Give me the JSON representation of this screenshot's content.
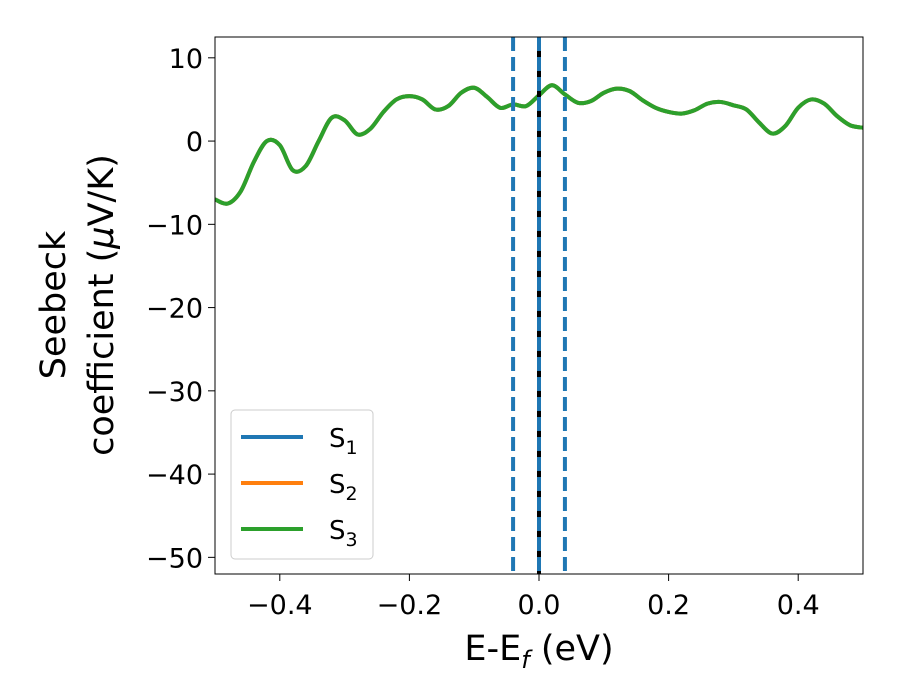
{
  "chart_data": {
    "type": "line",
    "xlabel": {
      "main": "E-E",
      "sub": "f",
      "tail": " (eV)"
    },
    "ylabel": {
      "line1": "Seebeck",
      "line2_a": "coefficient  (",
      "line2_mu": "μ",
      "line2_b": "V/K)"
    },
    "xlim": [
      -0.5,
      0.5
    ],
    "ylim": [
      -52,
      12.5
    ],
    "x_ticks": [
      -0.4,
      -0.2,
      0.0,
      0.2,
      0.4
    ],
    "x_tick_labels": [
      "−0.4",
      "−0.2",
      "0.0",
      "0.2",
      "0.4"
    ],
    "y_ticks": [
      10,
      0,
      -10,
      -20,
      -30,
      -40,
      -50
    ],
    "y_tick_labels": [
      "10",
      "0",
      "−10",
      "−20",
      "−30",
      "−40",
      "−50"
    ],
    "legend_position": "lower-left",
    "series": [
      {
        "name": "S",
        "sub": "1",
        "color": "#1f77b4",
        "x": [
          -0.5,
          -0.48,
          -0.46,
          -0.44,
          -0.42,
          -0.4,
          -0.38,
          -0.36,
          -0.34,
          -0.32,
          -0.3,
          -0.28,
          -0.26,
          -0.24,
          -0.22,
          -0.2,
          -0.18,
          -0.16,
          -0.14,
          -0.12,
          -0.1,
          -0.08,
          -0.06,
          -0.04,
          -0.02,
          0.0,
          0.02,
          0.04,
          0.06,
          0.08,
          0.1,
          0.12,
          0.14,
          0.16,
          0.18,
          0.2,
          0.22,
          0.24,
          0.26,
          0.28,
          0.3,
          0.32,
          0.34,
          0.36,
          0.38,
          0.4,
          0.42,
          0.44,
          0.46,
          0.48,
          0.5
        ],
        "y": [
          -7.0,
          -7.5,
          -6.0,
          -2.5,
          0.0,
          -0.5,
          -3.5,
          -3.0,
          0.0,
          2.8,
          2.5,
          0.8,
          1.5,
          3.5,
          5.0,
          5.4,
          5.0,
          3.8,
          4.2,
          5.8,
          6.4,
          5.3,
          4.0,
          4.4,
          4.2,
          5.5,
          6.7,
          5.6,
          4.6,
          4.8,
          5.8,
          6.3,
          6.0,
          4.9,
          4.0,
          3.5,
          3.3,
          3.7,
          4.5,
          4.7,
          4.3,
          3.8,
          2.2,
          0.9,
          1.8,
          4.0,
          5.0,
          4.5,
          3.0,
          1.9,
          1.6
        ]
      },
      {
        "name": "S",
        "sub": "2",
        "color": "#ff7f0e",
        "x": [
          -0.5,
          -0.48,
          -0.46,
          -0.44,
          -0.42,
          -0.4,
          -0.38,
          -0.36,
          -0.34,
          -0.32,
          -0.3,
          -0.28,
          -0.26,
          -0.24,
          -0.22,
          -0.2,
          -0.18,
          -0.16,
          -0.14,
          -0.12,
          -0.1,
          -0.08,
          -0.06,
          -0.04,
          -0.02,
          0.0,
          0.02,
          0.04,
          0.06,
          0.08,
          0.1,
          0.12,
          0.14,
          0.16,
          0.18,
          0.2,
          0.22,
          0.24,
          0.26,
          0.28,
          0.3,
          0.32,
          0.34,
          0.36,
          0.38,
          0.4,
          0.42,
          0.44,
          0.46,
          0.48,
          0.5
        ],
        "y": [
          -7.0,
          -7.5,
          -6.0,
          -2.5,
          0.0,
          -0.5,
          -3.5,
          -3.0,
          0.0,
          2.8,
          2.5,
          0.8,
          1.5,
          3.5,
          5.0,
          5.4,
          5.0,
          3.8,
          4.2,
          5.8,
          6.4,
          5.3,
          4.0,
          4.4,
          4.2,
          5.5,
          6.7,
          5.6,
          4.6,
          4.8,
          5.8,
          6.3,
          6.0,
          4.9,
          4.0,
          3.5,
          3.3,
          3.7,
          4.5,
          4.7,
          4.3,
          3.8,
          2.2,
          0.9,
          1.8,
          4.0,
          5.0,
          4.5,
          3.0,
          1.9,
          1.6
        ]
      },
      {
        "name": "S",
        "sub": "3",
        "color": "#2ca02c",
        "x": [
          -0.5,
          -0.48,
          -0.46,
          -0.44,
          -0.42,
          -0.4,
          -0.38,
          -0.36,
          -0.34,
          -0.32,
          -0.3,
          -0.28,
          -0.26,
          -0.24,
          -0.22,
          -0.2,
          -0.18,
          -0.16,
          -0.14,
          -0.12,
          -0.1,
          -0.08,
          -0.06,
          -0.04,
          -0.02,
          0.0,
          0.02,
          0.04,
          0.06,
          0.08,
          0.1,
          0.12,
          0.14,
          0.16,
          0.18,
          0.2,
          0.22,
          0.24,
          0.26,
          0.28,
          0.3,
          0.32,
          0.34,
          0.36,
          0.38,
          0.4,
          0.42,
          0.44,
          0.46,
          0.48,
          0.5
        ],
        "y": [
          -7.0,
          -7.5,
          -6.0,
          -2.5,
          0.0,
          -0.5,
          -3.5,
          -3.0,
          0.0,
          2.8,
          2.5,
          0.8,
          1.5,
          3.5,
          5.0,
          5.4,
          5.0,
          3.8,
          4.2,
          5.8,
          6.4,
          5.3,
          4.0,
          4.4,
          4.2,
          5.5,
          6.7,
          5.6,
          4.6,
          4.8,
          5.8,
          6.3,
          6.0,
          4.9,
          4.0,
          3.5,
          3.3,
          3.7,
          4.5,
          4.7,
          4.3,
          3.8,
          2.2,
          0.9,
          1.8,
          4.0,
          5.0,
          4.5,
          3.0,
          1.9,
          1.6
        ]
      }
    ],
    "vertical_lines": [
      {
        "x": -0.04,
        "color": "#1f77b4",
        "style": "dashed"
      },
      {
        "x": 0.0,
        "color": "#000000",
        "style": "solid"
      },
      {
        "x": 0.0,
        "color": "#1f77b4",
        "style": "dashed"
      },
      {
        "x": 0.04,
        "color": "#1f77b4",
        "style": "dashed"
      }
    ]
  }
}
